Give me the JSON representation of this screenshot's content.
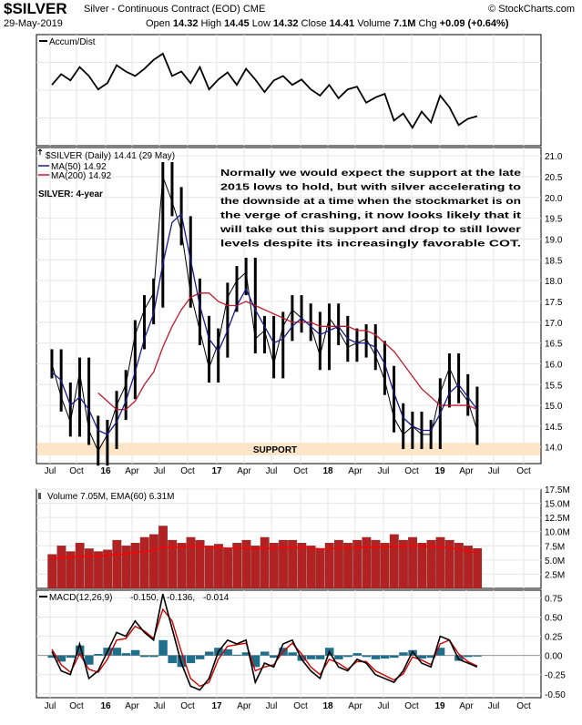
{
  "header": {
    "symbol": "$SILVER",
    "description": "Silver - Continuous Contract (EOD)",
    "exchange": "CME",
    "brand": "© StockCharts.com",
    "date": "29-May-2019",
    "open_label": "Open",
    "open": "14.32",
    "high_label": "High",
    "high": "14.45",
    "low_label": "Low",
    "low": "14.32",
    "close_label": "Close",
    "close": "14.41",
    "volume_label": "Volume",
    "volume": "7.1M",
    "chg_label": "Chg",
    "chg": "+0.09 (+0.64%)"
  },
  "colors": {
    "price": "#000000",
    "ma50": "#1a1a8c",
    "ma200": "#c0182d",
    "volume_bar": "#b22222",
    "volume_ema": "#ff0000",
    "macd_line": "#000000",
    "signal_line": "#cc0000",
    "histogram": "#1f6f8b",
    "support_zone": "#fce6c7",
    "annotation_text": "#b35900",
    "title_overlay": "#2b2bb0"
  },
  "chart_data": [
    {
      "panel": "accum-dist",
      "type": "line",
      "title": "Accum/Dist",
      "grid": true,
      "series": [
        {
          "name": "Accum/Dist",
          "x": [
            "2015-07",
            "2015-08",
            "2015-09",
            "2015-10",
            "2015-11",
            "2015-12",
            "2016-01",
            "2016-02",
            "2016-03",
            "2016-04",
            "2016-05",
            "2016-06",
            "2016-07",
            "2016-08",
            "2016-09",
            "2016-10",
            "2016-11",
            "2016-12",
            "2017-01",
            "2017-02",
            "2017-03",
            "2017-04",
            "2017-05",
            "2017-06",
            "2017-07",
            "2017-08",
            "2017-09",
            "2017-10",
            "2017-11",
            "2017-12",
            "2018-01",
            "2018-02",
            "2018-03",
            "2018-04",
            "2018-05",
            "2018-06",
            "2018-07",
            "2018-08",
            "2018-09",
            "2018-10",
            "2018-11",
            "2018-12",
            "2019-01",
            "2019-02",
            "2019-03",
            "2019-04",
            "2019-05"
          ],
          "values": [
            0.6,
            0.72,
            0.65,
            0.8,
            0.7,
            0.55,
            0.62,
            0.82,
            0.75,
            0.7,
            0.78,
            0.88,
            0.95,
            0.7,
            0.75,
            0.62,
            0.8,
            0.55,
            0.66,
            0.74,
            0.6,
            0.78,
            0.66,
            0.52,
            0.65,
            0.7,
            0.6,
            0.66,
            0.55,
            0.48,
            0.6,
            0.45,
            0.55,
            0.58,
            0.4,
            0.46,
            0.5,
            0.2,
            0.28,
            0.12,
            0.3,
            0.18,
            0.48,
            0.35,
            0.15,
            0.22,
            0.25
          ]
        }
      ]
    },
    {
      "panel": "price",
      "type": "line",
      "title": "$SILVER (Daily) 14.41 (29 May)",
      "overlay_title": "SILVER: 4-year",
      "annotation": "Normally we would expect the support at the late 2015 lows to hold, but with silver accelerating to the downside at a time when the stockmarket is on the verge of crashing, it now looks likely that it will take out this support and drop to still lower levels despite its increasingly favorable COT.",
      "support_label": "SUPPORT",
      "support_range": [
        13.8,
        14.1
      ],
      "ylim": [
        13.6,
        21.2
      ],
      "y_ticks": [
        "21.0",
        "20.5",
        "20.0",
        "19.5",
        "19.0",
        "18.5",
        "18.0",
        "17.5",
        "17.0",
        "16.5",
        "16.0",
        "15.5",
        "15.0",
        "14.5",
        "14.0"
      ],
      "x_ticks": [
        "Jul",
        "Oct",
        "16",
        "Apr",
        "Jul",
        "Oct",
        "17",
        "Apr",
        "Jul",
        "Oct",
        "18",
        "Apr",
        "Jul",
        "Oct",
        "19",
        "Apr",
        "Jul",
        "Oct"
      ],
      "legend": [
        {
          "name": "MA(50) 14.92",
          "color": "#1a1a8c"
        },
        {
          "name": "MA(200) 14.92",
          "color": "#c0182d"
        }
      ],
      "grid": true,
      "x": [
        "2015-07",
        "2015-08",
        "2015-09",
        "2015-10",
        "2015-11",
        "2015-12",
        "2016-01",
        "2016-02",
        "2016-03",
        "2016-04",
        "2016-05",
        "2016-06",
        "2016-07",
        "2016-08",
        "2016-09",
        "2016-10",
        "2016-11",
        "2016-12",
        "2017-01",
        "2017-02",
        "2017-03",
        "2017-04",
        "2017-05",
        "2017-06",
        "2017-07",
        "2017-08",
        "2017-09",
        "2017-10",
        "2017-11",
        "2017-12",
        "2018-01",
        "2018-02",
        "2018-03",
        "2018-04",
        "2018-05",
        "2018-06",
        "2018-07",
        "2018-08",
        "2018-09",
        "2018-10",
        "2018-11",
        "2018-12",
        "2019-01",
        "2019-02",
        "2019-03",
        "2019-04",
        "2019-05"
      ],
      "series": [
        {
          "name": "$SILVER",
          "values": [
            16.0,
            15.2,
            14.6,
            15.8,
            14.4,
            13.9,
            14.3,
            15.0,
            15.5,
            16.7,
            17.3,
            17.7,
            20.5,
            19.9,
            19.2,
            17.7,
            16.8,
            15.9,
            16.5,
            17.6,
            18.0,
            18.2,
            16.6,
            16.8,
            16.0,
            16.9,
            17.3,
            17.1,
            16.9,
            16.2,
            17.1,
            16.8,
            16.4,
            16.5,
            16.6,
            16.2,
            15.6,
            14.7,
            14.3,
            14.5,
            14.3,
            14.3,
            15.3,
            15.9,
            15.4,
            15.1,
            14.4
          ]
        },
        {
          "name": "MA(50)",
          "values": [
            15.8,
            15.6,
            15.0,
            15.2,
            14.9,
            14.4,
            14.3,
            14.6,
            15.1,
            15.8,
            16.6,
            17.2,
            18.4,
            19.4,
            19.6,
            18.5,
            17.4,
            16.6,
            16.3,
            16.8,
            17.4,
            17.8,
            17.3,
            16.9,
            16.5,
            16.6,
            16.9,
            17.1,
            16.9,
            16.7,
            16.8,
            16.9,
            16.6,
            16.5,
            16.5,
            16.4,
            16.0,
            15.3,
            14.7,
            14.5,
            14.4,
            14.4,
            14.8,
            15.3,
            15.5,
            15.2,
            14.9
          ]
        },
        {
          "name": "MA(200)",
          "values": [
            null,
            null,
            null,
            null,
            null,
            15.3,
            15.1,
            14.9,
            14.9,
            15.1,
            15.5,
            15.8,
            16.4,
            16.9,
            17.3,
            17.6,
            17.7,
            17.7,
            17.5,
            17.4,
            17.4,
            17.5,
            17.4,
            17.3,
            17.2,
            17.1,
            17.0,
            17.0,
            17.0,
            16.9,
            16.9,
            16.9,
            16.9,
            16.8,
            16.8,
            16.7,
            16.5,
            16.3,
            16.0,
            15.7,
            15.4,
            15.2,
            15.0,
            15.0,
            15.0,
            15.0,
            14.9
          ]
        }
      ]
    },
    {
      "panel": "volume",
      "type": "bar",
      "title": "Volume 7.05M, EMA(60) 6.31M",
      "ylim": [
        0,
        17.5
      ],
      "y_ticks": [
        "17.5M",
        "15.0M",
        "12.5M",
        "10.0M",
        "7.5M",
        "5.0M",
        "2.5M"
      ],
      "grid": true,
      "x": [
        "2015-07",
        "2015-08",
        "2015-09",
        "2015-10",
        "2015-11",
        "2015-12",
        "2016-01",
        "2016-02",
        "2016-03",
        "2016-04",
        "2016-05",
        "2016-06",
        "2016-07",
        "2016-08",
        "2016-09",
        "2016-10",
        "2016-11",
        "2016-12",
        "2017-01",
        "2017-02",
        "2017-03",
        "2017-04",
        "2017-05",
        "2017-06",
        "2017-07",
        "2017-08",
        "2017-09",
        "2017-10",
        "2017-11",
        "2017-12",
        "2018-01",
        "2018-02",
        "2018-03",
        "2018-04",
        "2018-05",
        "2018-06",
        "2018-07",
        "2018-08",
        "2018-09",
        "2018-10",
        "2018-11",
        "2018-12",
        "2019-01",
        "2019-02",
        "2019-03",
        "2019-04",
        "2019-05"
      ],
      "series": [
        {
          "name": "Volume",
          "values": [
            6.0,
            7.5,
            6.5,
            8.0,
            7.0,
            6.5,
            6.8,
            8.5,
            7.5,
            8.0,
            9.0,
            9.5,
            11.0,
            8.5,
            8.0,
            9.0,
            8.5,
            7.5,
            7.8,
            7.0,
            8.0,
            8.5,
            7.5,
            9.0,
            8.0,
            8.5,
            8.5,
            8.0,
            7.5,
            7.0,
            8.0,
            8.5,
            8.0,
            8.5,
            9.0,
            8.5,
            8.0,
            9.5,
            8.5,
            9.0,
            8.0,
            8.5,
            9.0,
            8.5,
            8.0,
            7.5,
            7.05
          ]
        },
        {
          "name": "EMA(60)",
          "values": [
            5.2,
            5.4,
            5.5,
            5.6,
            5.7,
            5.7,
            5.8,
            6.0,
            6.1,
            6.3,
            6.5,
            6.7,
            7.2,
            7.3,
            7.3,
            7.4,
            7.4,
            7.3,
            7.2,
            7.1,
            7.1,
            7.1,
            7.0,
            7.1,
            7.1,
            7.2,
            7.2,
            7.2,
            7.1,
            7.0,
            7.0,
            7.1,
            7.1,
            7.2,
            7.3,
            7.3,
            7.3,
            7.4,
            7.4,
            7.5,
            7.4,
            7.4,
            7.3,
            7.1,
            6.9,
            6.6,
            6.31
          ]
        }
      ]
    },
    {
      "panel": "macd",
      "type": "line",
      "title": "MACD(12,26,9)",
      "title_values": [
        {
          "text": "-0.150",
          "color": "#000000"
        },
        {
          "text": "-0.136",
          "color": "#cc0000"
        },
        {
          "text": "-0.014",
          "color": "#1f6f8b"
        }
      ],
      "ylim": [
        -0.55,
        0.85
      ],
      "y_ticks": [
        "0.75",
        "0.50",
        "0.25",
        "0.00",
        "-0.25",
        "-0.50"
      ],
      "grid": true,
      "x": [
        "2015-07",
        "2015-08",
        "2015-09",
        "2015-10",
        "2015-11",
        "2015-12",
        "2016-01",
        "2016-02",
        "2016-03",
        "2016-04",
        "2016-05",
        "2016-06",
        "2016-07",
        "2016-08",
        "2016-09",
        "2016-10",
        "2016-11",
        "2016-12",
        "2017-01",
        "2017-02",
        "2017-03",
        "2017-04",
        "2017-05",
        "2017-06",
        "2017-07",
        "2017-08",
        "2017-09",
        "2017-10",
        "2017-11",
        "2017-12",
        "2018-01",
        "2018-02",
        "2018-03",
        "2018-04",
        "2018-05",
        "2018-06",
        "2018-07",
        "2018-08",
        "2018-09",
        "2018-10",
        "2018-11",
        "2018-12",
        "2019-01",
        "2019-02",
        "2019-03",
        "2019-04",
        "2019-05"
      ],
      "series": [
        {
          "name": "MACD",
          "values": [
            0.05,
            -0.2,
            -0.25,
            0.15,
            -0.3,
            -0.2,
            0.05,
            0.3,
            0.25,
            0.45,
            0.3,
            0.2,
            0.8,
            0.35,
            -0.1,
            -0.4,
            -0.45,
            -0.3,
            0.05,
            0.2,
            0.15,
            0.2,
            -0.35,
            -0.1,
            -0.15,
            0.15,
            0.2,
            -0.05,
            -0.2,
            -0.3,
            0.05,
            -0.15,
            -0.2,
            -0.05,
            -0.1,
            -0.25,
            -0.3,
            -0.35,
            -0.2,
            0.05,
            -0.1,
            -0.15,
            0.25,
            0.2,
            -0.05,
            -0.1,
            -0.15
          ]
        },
        {
          "name": "Signal",
          "values": [
            0.08,
            -0.12,
            -0.22,
            0.02,
            -0.18,
            -0.22,
            -0.05,
            0.2,
            0.22,
            0.38,
            0.32,
            0.22,
            0.6,
            0.45,
            0.05,
            -0.3,
            -0.4,
            -0.35,
            -0.05,
            0.12,
            0.14,
            0.16,
            -0.2,
            -0.15,
            -0.12,
            0.05,
            0.16,
            0.02,
            -0.15,
            -0.25,
            -0.05,
            -0.1,
            -0.18,
            -0.08,
            -0.08,
            -0.2,
            -0.26,
            -0.32,
            -0.24,
            -0.02,
            -0.06,
            -0.12,
            0.15,
            0.2,
            0.02,
            -0.08,
            -0.136
          ]
        },
        {
          "name": "Histogram",
          "values": [
            -0.03,
            -0.08,
            -0.03,
            0.13,
            -0.12,
            0.02,
            0.1,
            0.1,
            0.03,
            0.07,
            -0.02,
            -0.02,
            0.2,
            -0.1,
            -0.15,
            -0.1,
            -0.05,
            0.05,
            0.1,
            0.08,
            0.01,
            0.04,
            -0.15,
            0.05,
            -0.03,
            0.1,
            0.04,
            -0.07,
            -0.05,
            -0.05,
            0.1,
            -0.05,
            -0.02,
            0.03,
            -0.02,
            -0.05,
            -0.04,
            -0.03,
            0.04,
            0.07,
            -0.04,
            -0.03,
            0.1,
            0.0,
            -0.07,
            -0.02,
            -0.014
          ]
        }
      ]
    }
  ]
}
